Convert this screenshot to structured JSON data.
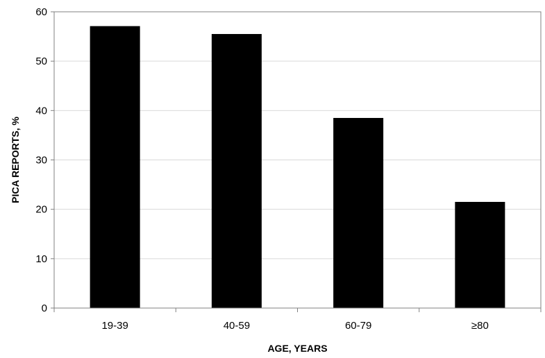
{
  "chart_data": {
    "type": "bar",
    "categories": [
      "19-39",
      "40-59",
      "60-79",
      "≥80"
    ],
    "values": [
      57.1,
      55.5,
      38.5,
      21.5
    ],
    "xlabel": "AGE, YEARS",
    "ylabel": "PICA REPORTS, %",
    "ylim": [
      0,
      60
    ],
    "yticks": [
      "0",
      "10",
      "20",
      "30",
      "40",
      "50",
      "60"
    ],
    "grid": true,
    "legend": "none",
    "colors": {
      "bar": "#000000",
      "grid": "#d9d9d9",
      "axis": "#808080",
      "background": "#ffffff"
    }
  }
}
